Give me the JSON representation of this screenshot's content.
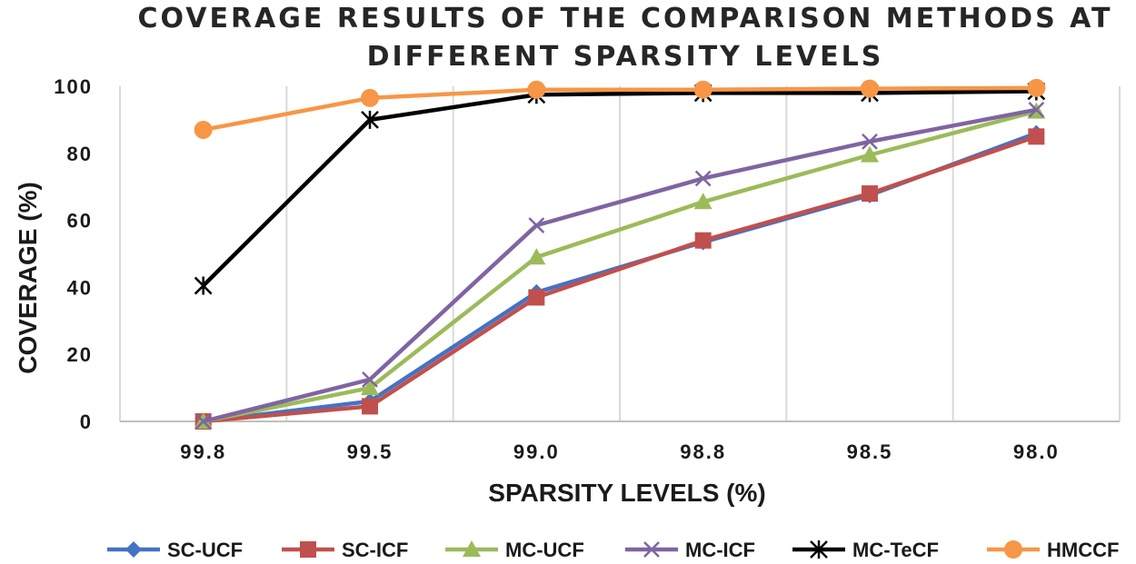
{
  "chart_data": {
    "type": "line",
    "title_lines": [
      "COVERAGE RESULTS OF THE COMPARISON METHODS AT",
      "DIFFERENT SPARSITY LEVELS"
    ],
    "xlabel": "SPARSITY LEVELS (%)",
    "ylabel": "COVERAGE (%)",
    "categories": [
      "99.8",
      "99.5",
      "99.0",
      "98.8",
      "98.5",
      "98.0"
    ],
    "yticks": [
      "0",
      "20",
      "40",
      "60",
      "80",
      "100"
    ],
    "ylim": [
      0,
      100
    ],
    "grid": "vertical",
    "legend_position": "bottom",
    "series": [
      {
        "name": "SC-UCF",
        "color": "#4472C4",
        "marker": "diamond",
        "values": [
          0,
          6,
          38.5,
          53.5,
          67.5,
          86
        ]
      },
      {
        "name": "SC-ICF",
        "color": "#C0504D",
        "marker": "square",
        "values": [
          0,
          4.5,
          37,
          54,
          68,
          85
        ]
      },
      {
        "name": "MC-UCF",
        "color": "#9BBB59",
        "marker": "triangle",
        "values": [
          0,
          10,
          49,
          65.5,
          79.5,
          92.5
        ]
      },
      {
        "name": "MC-ICF",
        "color": "#8064A2",
        "marker": "x",
        "values": [
          0,
          12.5,
          58.5,
          72.5,
          83.5,
          93
        ]
      },
      {
        "name": "MC-TeCF",
        "color": "#000000",
        "marker": "star",
        "values": [
          40.5,
          90,
          97.5,
          98,
          98,
          98.5
        ]
      },
      {
        "name": "HMCCF",
        "color": "#F79646",
        "marker": "circle",
        "values": [
          87,
          96.5,
          99,
          99,
          99.3,
          99.5
        ]
      }
    ]
  }
}
